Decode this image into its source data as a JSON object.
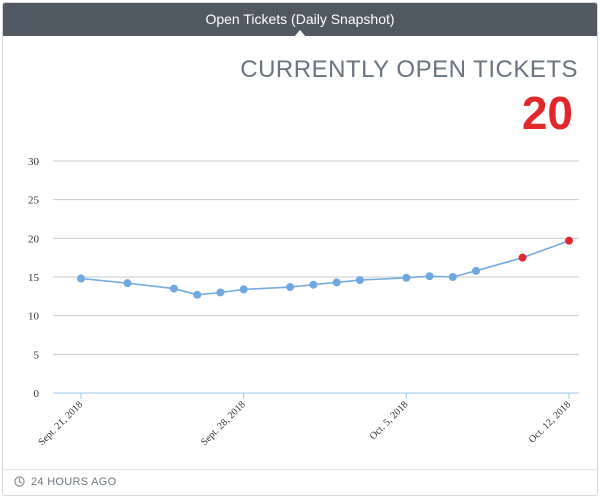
{
  "header": {
    "title": "Open Tickets (Daily Snapshot)"
  },
  "kpi": {
    "label": "CURRENTLY OPEN TICKETS",
    "value": "20",
    "value_color": "#e3282b"
  },
  "footer": {
    "label": "24 HOURS AGO",
    "icon": "clock-icon"
  },
  "colors": {
    "line": "#75acdf",
    "point": "#6fa8e0",
    "highlight": "#e3282b",
    "grid": "#c8cbcf",
    "axis": "#9cc8ea"
  },
  "chart_data": {
    "type": "line",
    "title": "",
    "xlabel": "",
    "ylabel": "",
    "ylim": [
      0,
      30
    ],
    "yticks": [
      0,
      5,
      10,
      15,
      20,
      25,
      30
    ],
    "grid": true,
    "x": [
      "Sept. 21, 2018",
      "Sept. 22, 2018",
      "Sept. 23, 2018",
      "Sept. 24, 2018",
      "Sept. 25, 2018",
      "Sept. 26, 2018",
      "Sept. 27, 2018",
      "Sept. 28, 2018",
      "Sept. 29, 2018",
      "Sept. 30, 2018",
      "Oct. 1, 2018",
      "Oct. 2, 2018",
      "Oct. 3, 2018",
      "Oct. 4, 2018",
      "Oct. 5, 2018",
      "Oct. 6, 2018",
      "Oct. 7, 2018",
      "Oct. 8, 2018",
      "Oct. 9, 2018",
      "Oct. 10, 2018",
      "Oct. 11, 2018",
      "Oct. 12, 2018"
    ],
    "xtick_labels": [
      "Sept. 21, 2018",
      "Sept. 28, 2018",
      "Oct. 5, 2018",
      "Oct. 12, 2018"
    ],
    "values": [
      14.8,
      null,
      14.2,
      null,
      13.5,
      12.7,
      13.0,
      13.4,
      null,
      13.7,
      14.0,
      14.3,
      14.6,
      null,
      14.9,
      15.1,
      15.0,
      15.8,
      null,
      17.5,
      null,
      19.7
    ],
    "highlight_x": [
      "Oct. 10, 2018",
      "Oct. 12, 2018"
    ]
  }
}
